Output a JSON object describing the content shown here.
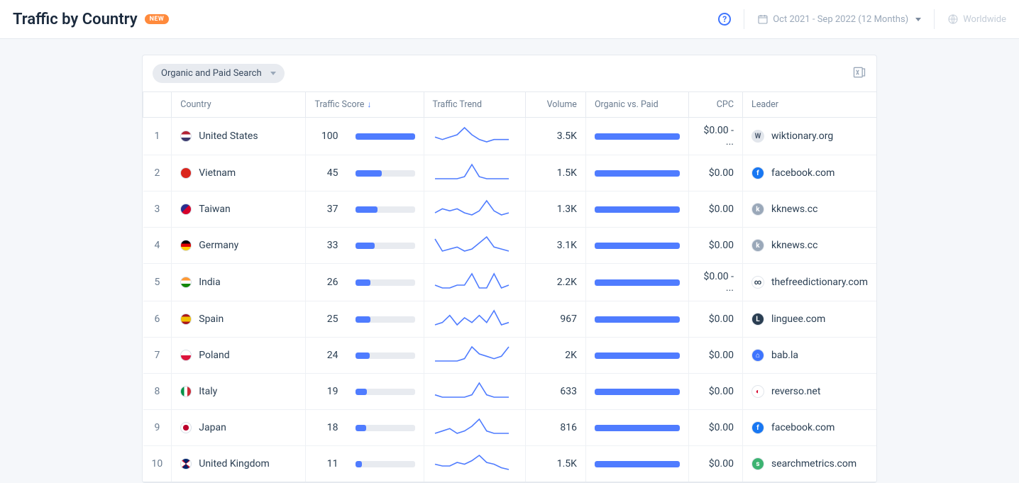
{
  "header": {
    "title": "Traffic by Country",
    "badge": "NEW",
    "date_range": "Oct 2021 - Sep 2022 (12 Months)",
    "scope": "Worldwide"
  },
  "panel": {
    "filter_label": "Organic and Paid Search"
  },
  "columns": {
    "country": "Country",
    "traffic_score": "Traffic Score",
    "traffic_trend": "Traffic Trend",
    "volume": "Volume",
    "organic_vs_paid": "Organic vs. Paid",
    "cpc": "CPC",
    "leader": "Leader"
  },
  "style": {
    "bar_color": "#4f7cff",
    "track_color": "#e8ebf0",
    "spark_color": "#4f7cff"
  },
  "rows": [
    {
      "rank": "1",
      "country": "United States",
      "flag_style": "background:linear-gradient(#b22234 0 33%,#fff 33% 66%,#3c3b6e 66% 100%)",
      "score": "100",
      "score_pct": 100,
      "spark": [
        8,
        9,
        8,
        7,
        4,
        7,
        9,
        10,
        9,
        9,
        9
      ],
      "volume": "3.5K",
      "ovp_pct": 100,
      "cpc": "$0.00 - ...",
      "leader": "wiktionary.org",
      "fav_bg": "#e2e6ec",
      "fav_fg": "#4c5b70",
      "fav_txt": "W"
    },
    {
      "rank": "2",
      "country": "Vietnam",
      "flag_style": "background:#da251d",
      "score": "45",
      "score_pct": 45,
      "spark": [
        11,
        11,
        11,
        11,
        10,
        4,
        10,
        11,
        11,
        11,
        11
      ],
      "volume": "1.5K",
      "ovp_pct": 100,
      "cpc": "$0.00",
      "leader": "facebook.com",
      "fav_bg": "#1877f2",
      "fav_fg": "#fff",
      "fav_txt": "f"
    },
    {
      "rank": "3",
      "country": "Taiwan",
      "flag_style": "background:linear-gradient(135deg,#2a2e8f 0 45%,#d6002a 45% 100%)",
      "score": "37",
      "score_pct": 37,
      "spark": [
        10,
        8,
        9,
        8,
        10,
        11,
        9,
        4,
        9,
        11,
        10
      ],
      "volume": "1.3K",
      "ovp_pct": 100,
      "cpc": "$0.00",
      "leader": "kknews.cc",
      "fav_bg": "#9aa8b9",
      "fav_fg": "#fff",
      "fav_txt": "k"
    },
    {
      "rank": "4",
      "country": "Germany",
      "flag_style": "background:linear-gradient(#000 0 33%,#dd0000 33% 66%,#ffce00 66% 100%)",
      "score": "33",
      "score_pct": 33,
      "spark": [
        5,
        11,
        10,
        9,
        11,
        10,
        7,
        4,
        9,
        10,
        11
      ],
      "volume": "3.1K",
      "ovp_pct": 100,
      "cpc": "$0.00",
      "leader": "kknews.cc",
      "fav_bg": "#9aa8b9",
      "fav_fg": "#fff",
      "fav_txt": "k"
    },
    {
      "rank": "5",
      "country": "India",
      "flag_style": "background:linear-gradient(#ff9933 0 33%,#fff 33% 66%,#138808 66% 100%)",
      "score": "26",
      "score_pct": 26,
      "spark": [
        9,
        10,
        10,
        9,
        9,
        5,
        10,
        10,
        5,
        10,
        9
      ],
      "volume": "2.2K",
      "ovp_pct": 100,
      "cpc": "$0.00 - ...",
      "leader": "thefreedictionary.com",
      "fav_bg": "#ffffff",
      "fav_fg": "#2a3e52",
      "fav_txt": "∞"
    },
    {
      "rank": "6",
      "country": "Spain",
      "flag_style": "background:linear-gradient(#aa151b 0 25%,#f1bf00 25% 75%,#aa151b 75% 100%)",
      "score": "25",
      "score_pct": 25,
      "spark": [
        11,
        10,
        7,
        11,
        8,
        10,
        7,
        10,
        5,
        11,
        10
      ],
      "volume": "967",
      "ovp_pct": 100,
      "cpc": "$0.00",
      "leader": "linguee.com",
      "fav_bg": "#2a3e52",
      "fav_fg": "#fff",
      "fav_txt": "L"
    },
    {
      "rank": "7",
      "country": "Poland",
      "flag_style": "background:linear-gradient(#fff 0 50%,#dc143c 50% 100%)",
      "score": "24",
      "score_pct": 24,
      "spark": [
        12,
        12,
        12,
        12,
        11,
        6,
        9,
        10,
        11,
        10,
        6
      ],
      "volume": "2K",
      "ovp_pct": 100,
      "cpc": "$0.00",
      "leader": "bab.la",
      "fav_bg": "#3e74fe",
      "fav_fg": "#fff",
      "fav_txt": "⌂"
    },
    {
      "rank": "8",
      "country": "Italy",
      "flag_style": "background:linear-gradient(90deg,#009246 0 33%,#fff 33% 66%,#ce2b37 66% 100%)",
      "score": "19",
      "score_pct": 19,
      "spark": [
        10,
        11,
        11,
        11,
        11,
        10,
        5,
        10,
        11,
        11,
        11
      ],
      "volume": "633",
      "ovp_pct": 100,
      "cpc": "$0.00",
      "leader": "reverso.net",
      "fav_bg": "#ffffff",
      "fav_fg": "#d6002a",
      "fav_txt": "◐"
    },
    {
      "rank": "9",
      "country": "Japan",
      "flag_style": "background:radial-gradient(circle at center,#bc002d 0 40%,#fff 42% 100%)",
      "score": "18",
      "score_pct": 18,
      "spark": [
        11,
        10,
        9,
        11,
        10,
        8,
        5,
        10,
        11,
        11,
        11
      ],
      "volume": "816",
      "ovp_pct": 100,
      "cpc": "$0.00",
      "leader": "facebook.com",
      "fav_bg": "#1877f2",
      "fav_fg": "#fff",
      "fav_txt": "f"
    },
    {
      "rank": "10",
      "country": "United Kingdom",
      "flag_style": "background:conic-gradient(#012169 0 12%,#c8102e 12% 15%,#fff 15% 35%,#c8102e 35% 40%,#012169 40% 62%,#c8102e 62% 65%,#fff 65% 85%,#c8102e 85% 90%,#012169 90% 100%)",
      "score": "11",
      "score_pct": 11,
      "spark": [
        9,
        10,
        10,
        8,
        9,
        7,
        4,
        8,
        9,
        11,
        12
      ],
      "volume": "1.5K",
      "ovp_pct": 100,
      "cpc": "$0.00",
      "leader": "searchmetrics.com",
      "fav_bg": "#3cb371",
      "fav_fg": "#fff",
      "fav_txt": "s"
    }
  ]
}
